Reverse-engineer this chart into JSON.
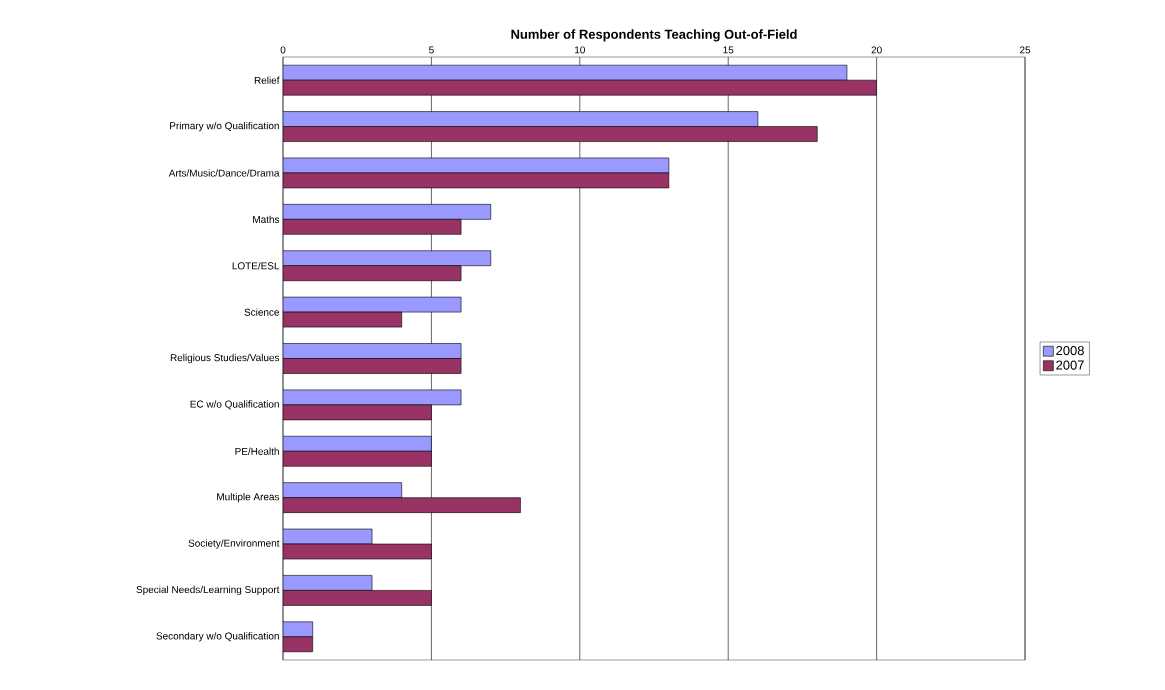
{
  "chart_data": {
    "type": "bar",
    "orientation": "horizontal",
    "title": "Number of Respondents Teaching Out-of-Field",
    "categories": [
      "Relief",
      "Primary w/o Qualification",
      "Arts/Music/Dance/Drama",
      "Maths",
      "LOTE/ESL",
      "Science",
      "Religious Studies/Values",
      "EC w/o Qualification",
      "PE/Health",
      "Multiple Areas",
      "Society/Environment",
      "Special Needs/Learning Support",
      "Secondary w/o Qualification"
    ],
    "series": [
      {
        "name": "2008",
        "color": "#9999ff",
        "values": [
          19,
          16,
          13,
          7,
          7,
          6,
          6,
          6,
          5,
          4,
          3,
          3,
          1
        ]
      },
      {
        "name": "2007",
        "color": "#993366",
        "values": [
          20,
          18,
          13,
          6,
          6,
          4,
          6,
          5,
          5,
          8,
          5,
          5,
          1
        ]
      }
    ],
    "xlim": [
      0,
      25
    ],
    "xticks": [
      0,
      5,
      10,
      15,
      20,
      25
    ],
    "grid": "x",
    "legend": "right"
  }
}
